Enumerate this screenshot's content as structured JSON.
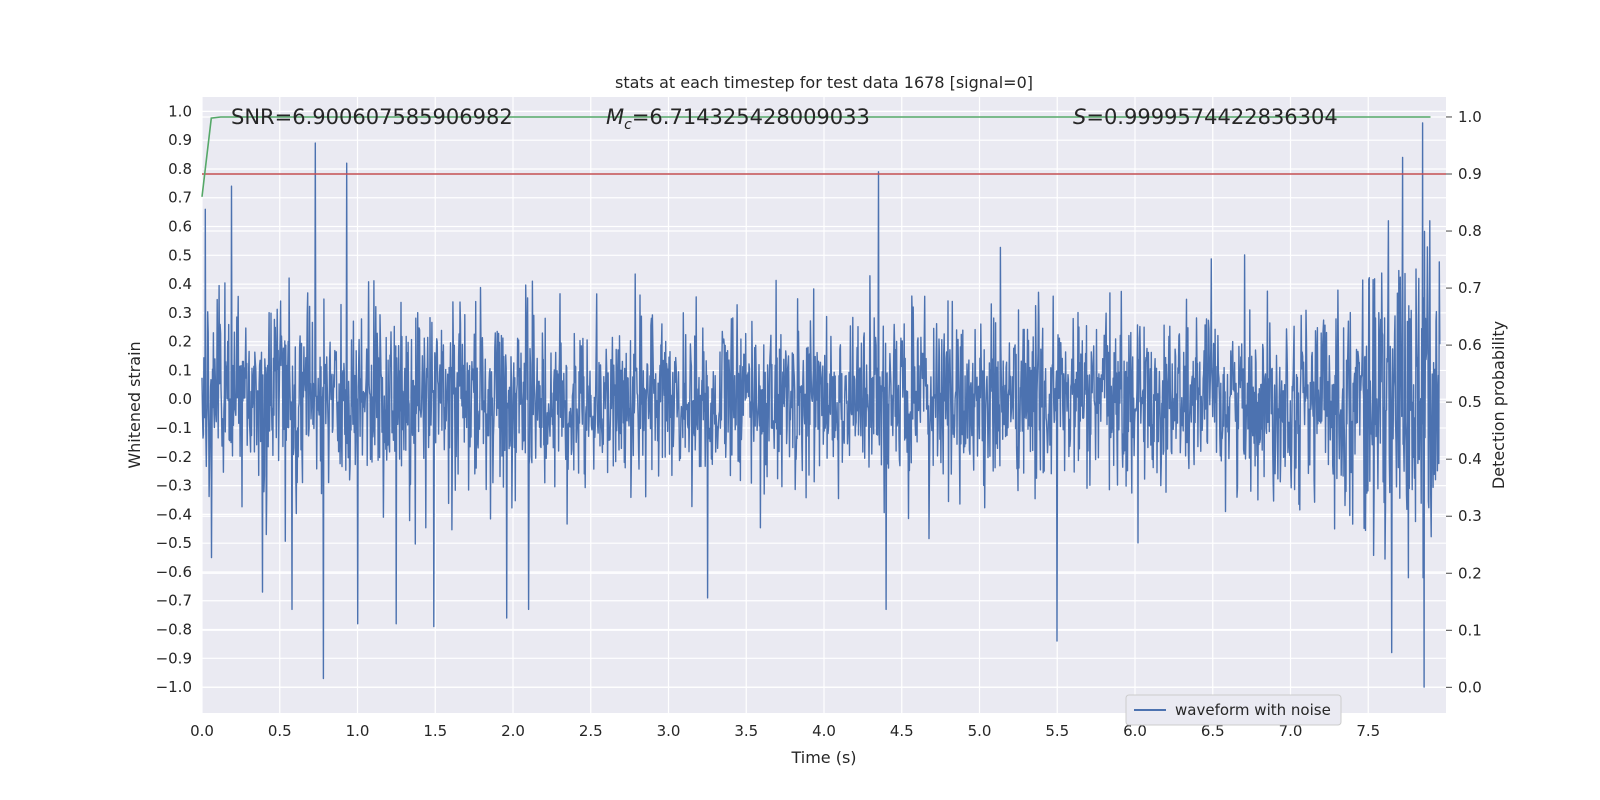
{
  "chart_data": {
    "type": "line",
    "title": "stats at each timestep for test data 1678 [signal=0]",
    "xlabel": "Time (s)",
    "ylabel_left": "Whitened strain",
    "ylabel_right": "Detection probability",
    "xlim": [
      0.0,
      8.0
    ],
    "ylim_left": [
      -1.09,
      1.05
    ],
    "ylim_right": [
      -0.045,
      1.035
    ],
    "x_ticks": [
      "0.0",
      "0.5",
      "1.0",
      "1.5",
      "2.0",
      "2.5",
      "3.0",
      "3.5",
      "4.0",
      "4.5",
      "5.0",
      "5.5",
      "6.0",
      "6.5",
      "7.0",
      "7.5"
    ],
    "y_left_ticks": [
      "1.0",
      "0.9",
      "0.8",
      "0.7",
      "0.6",
      "0.5",
      "0.4",
      "0.3",
      "0.2",
      "0.1",
      "0.0",
      "−0.1",
      "−0.2",
      "−0.3",
      "−0.4",
      "−0.5",
      "−0.6",
      "−0.7",
      "−0.8",
      "−0.9",
      "−1.0"
    ],
    "y_right_ticks": [
      "1.0",
      "0.9",
      "0.8",
      "0.7",
      "0.6",
      "0.5",
      "0.4",
      "0.3",
      "0.2",
      "0.1",
      "0.0"
    ],
    "annotations": {
      "snr": "SNR=6.900607585906982",
      "mc_symbol": "M",
      "mc_subscript": "c",
      "mc_value": "=6.714325428009033",
      "s_symbol": "S",
      "s_value": "=0.9999574422836304"
    },
    "grid": true,
    "legend": {
      "location": "lower-right",
      "entries": [
        "waveform with noise"
      ]
    },
    "series": [
      {
        "name": "waveform with noise",
        "axis": "left",
        "color": "#4c72b0",
        "style": "dense noise, typical envelope about ±0.4 to ±0.5, growing near t≈7.8 s",
        "peaks": [
          {
            "x": 0.02,
            "y": 0.66
          },
          {
            "x": 0.06,
            "y": -0.55
          },
          {
            "x": 0.19,
            "y": 0.74
          },
          {
            "x": 0.39,
            "y": -0.67
          },
          {
            "x": 0.58,
            "y": -0.73
          },
          {
            "x": 0.73,
            "y": 0.89
          },
          {
            "x": 0.78,
            "y": -0.97
          },
          {
            "x": 0.93,
            "y": 0.82
          },
          {
            "x": 1.0,
            "y": -0.78
          },
          {
            "x": 1.25,
            "y": -0.78
          },
          {
            "x": 1.49,
            "y": -0.79
          },
          {
            "x": 1.96,
            "y": -0.76
          },
          {
            "x": 2.1,
            "y": -0.73
          },
          {
            "x": 3.25,
            "y": -0.69
          },
          {
            "x": 4.35,
            "y": 0.79
          },
          {
            "x": 4.4,
            "y": -0.73
          },
          {
            "x": 5.5,
            "y": -0.84
          },
          {
            "x": 7.65,
            "y": -0.88
          },
          {
            "x": 7.72,
            "y": 0.84
          },
          {
            "x": 7.85,
            "y": 0.96
          },
          {
            "x": 7.86,
            "y": -1.0
          }
        ]
      },
      {
        "name": "detection probability",
        "axis": "right",
        "color": "#55a868",
        "x": [
          0.0,
          0.06,
          0.12,
          0.5,
          1.0,
          2.0,
          3.0,
          4.0,
          5.0,
          6.0,
          7.0,
          7.9
        ],
        "y": [
          0.86,
          0.998,
          1.0,
          1.0,
          1.0,
          1.0,
          1.0,
          1.0,
          1.0,
          1.0,
          1.0,
          1.0
        ]
      },
      {
        "name": "threshold",
        "axis": "right",
        "color": "#c44e52",
        "x": [
          0.0,
          8.0
        ],
        "y": [
          0.9,
          0.9
        ]
      }
    ]
  }
}
